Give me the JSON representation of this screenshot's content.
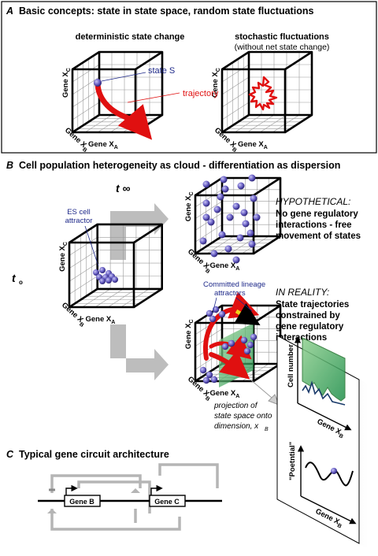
{
  "panel_a": {
    "letter": "A",
    "title": "Basic concepts:  state in state space, random state fluctuations",
    "left_heading": "deterministic state change",
    "right_heading": "stochastic fluctuations",
    "right_subheading": "(without net state change)",
    "state_label": "state S",
    "trajectory_label": "trajectory"
  },
  "panel_b": {
    "letter": "B",
    "title": "Cell population heterogeneity as cloud - differentiation as dispersion",
    "t_inf": "t ∞",
    "t_0": "t",
    "t_0_sub": "o",
    "es_label_1": "ES cell",
    "es_label_2": "attractor",
    "hyp_title": "HYPOTHETICAL:",
    "hyp_lines": [
      "No gene regulatory",
      "interactions - free",
      "movement of states"
    ],
    "real_title": "IN REALITY:",
    "real_lines": [
      "State trajectories",
      "constrained by",
      "gene regulatory",
      "interactions"
    ],
    "committed_1": "Committed lineage",
    "committed_2": "attractors",
    "projection_lines": [
      "projection of",
      "state space onto",
      "dimension, x"
    ],
    "projection_sub": "B",
    "cell_number": "Cell number",
    "potential": "\"Poetntial\"",
    "gene_xb": "Gene X",
    "gene_xb_sub": "B"
  },
  "axes": {
    "gene": "Gene X",
    "a": "A",
    "b": "B",
    "c": "C"
  },
  "panel_c": {
    "letter": "C",
    "title": "Typical gene circuit architecture",
    "gene_b": "Gene B",
    "gene_c": "Gene C"
  }
}
